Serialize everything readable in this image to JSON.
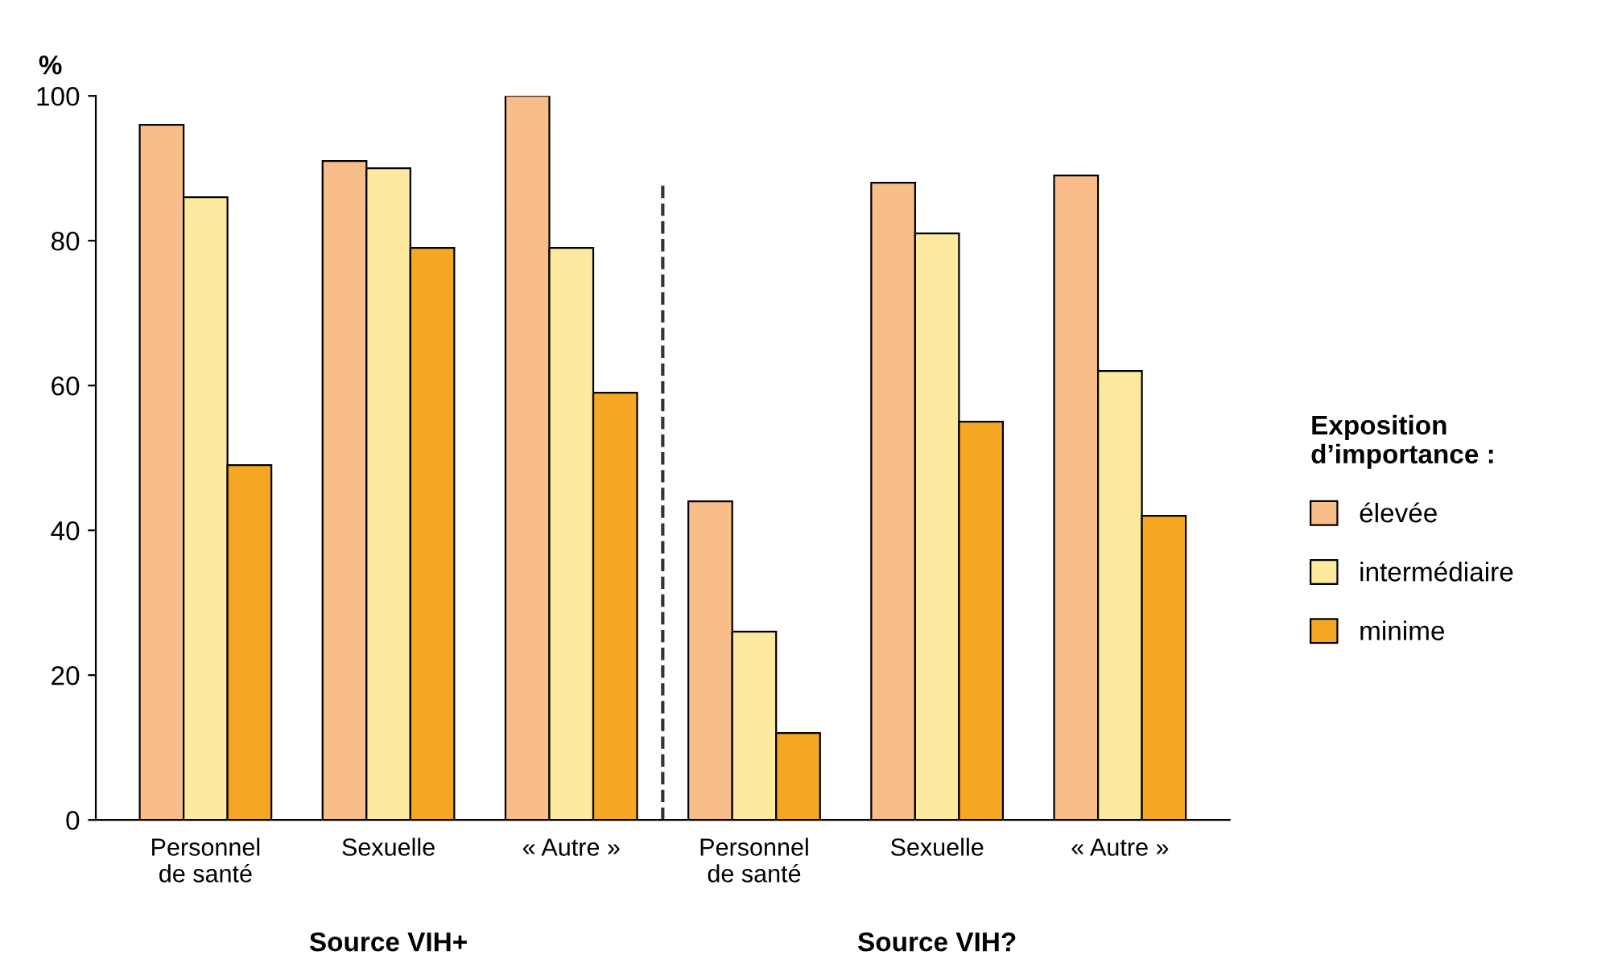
{
  "chart_data": {
    "type": "bar",
    "ylabel": "%",
    "legend_title": "Exposition\nd’importance :",
    "categories": [
      "Personnel\nde santé",
      "Sexuelle",
      "« Autre »",
      "Personnel\nde santé",
      "Sexuelle",
      "« Autre »"
    ],
    "series": [
      {
        "name": "élevée",
        "color": "#f9bd8a",
        "values": [
          96,
          91,
          100,
          44,
          88,
          89
        ]
      },
      {
        "name": "intermédiaire",
        "color": "#fde9a0",
        "values": [
          86,
          90,
          79,
          26,
          81,
          62
        ]
      },
      {
        "name": "minime",
        "color": "#f5a623",
        "values": [
          49,
          79,
          59,
          12,
          55,
          42
        ]
      }
    ],
    "ylim": [
      0,
      100
    ],
    "yticks": [
      0,
      20,
      40,
      60,
      80,
      100
    ],
    "grid": false,
    "legend": "right",
    "annotations": [
      "Source VIH+",
      "Source VIH?"
    ]
  }
}
